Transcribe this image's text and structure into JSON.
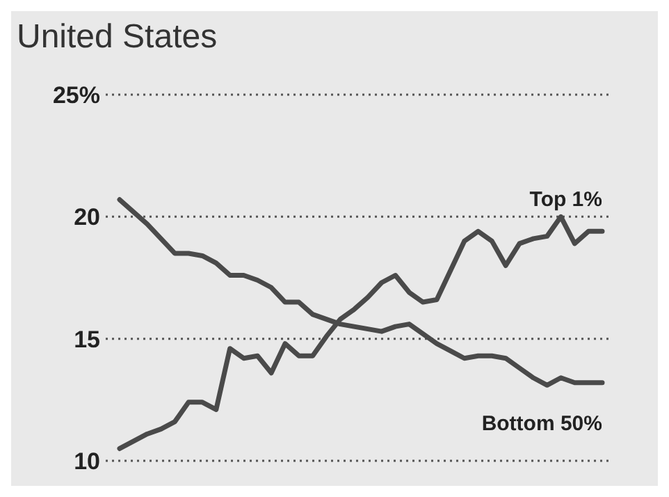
{
  "chart_data": {
    "type": "line",
    "title": "United States",
    "categories": [
      null,
      null,
      null,
      null,
      null,
      null,
      null,
      null,
      null,
      null,
      null,
      null,
      null,
      null,
      null,
      null,
      null,
      null,
      null,
      null,
      null,
      null,
      null,
      null,
      null,
      null,
      null,
      null,
      null,
      null,
      null,
      null,
      null,
      null,
      null,
      null
    ],
    "series": [
      {
        "name": "Top 1%",
        "color": "#4a4a4a",
        "values": [
          10.5,
          10.8,
          11.1,
          11.3,
          11.6,
          12.4,
          12.4,
          12.1,
          14.6,
          14.2,
          14.3,
          13.6,
          14.8,
          14.3,
          14.3,
          15.1,
          15.8,
          16.2,
          16.7,
          17.3,
          17.6,
          16.9,
          16.5,
          16.6,
          17.8,
          19.0,
          19.4,
          19.0,
          18.0,
          18.9,
          19.1,
          19.2,
          20.0,
          18.9,
          19.4,
          19.4
        ]
      },
      {
        "name": "Bottom 50%",
        "color": "#4a4a4a",
        "values": [
          20.7,
          20.2,
          19.7,
          19.1,
          18.5,
          18.5,
          18.4,
          18.1,
          17.6,
          17.6,
          17.4,
          17.1,
          16.5,
          16.5,
          16.0,
          15.8,
          15.6,
          15.5,
          15.4,
          15.3,
          15.5,
          15.6,
          15.2,
          14.8,
          14.5,
          14.2,
          14.3,
          14.3,
          14.2,
          13.8,
          13.4,
          13.1,
          13.4,
          13.2,
          13.2,
          13.2
        ]
      }
    ],
    "ylim": [
      10,
      25
    ],
    "yticks": [
      10,
      15,
      20,
      {
        "value": 25,
        "label": "25%"
      }
    ],
    "grid": "y",
    "legend": false,
    "line_style": "solid",
    "marker": "none"
  }
}
